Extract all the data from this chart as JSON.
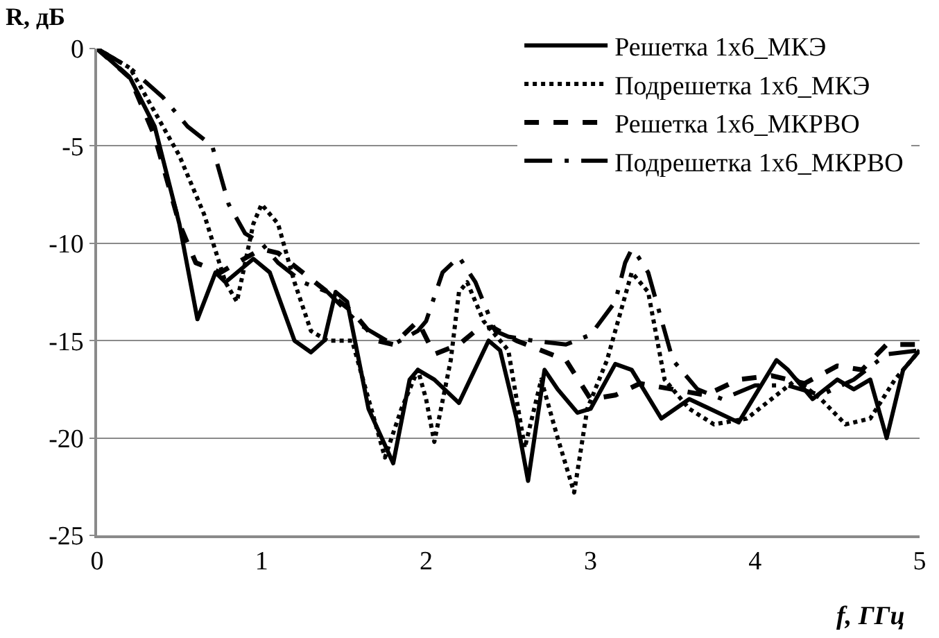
{
  "chart_data": {
    "type": "line",
    "xlabel": "f, ГГц",
    "ylabel": "R, дБ",
    "xlim": [
      0,
      5
    ],
    "xticks": [
      0,
      1,
      2,
      3,
      4,
      5
    ],
    "ylim": [
      -25,
      0
    ],
    "yticks": [
      -25,
      -20,
      -15,
      -10,
      -5,
      0
    ],
    "grid": "y",
    "legend": "top right",
    "marker": "none",
    "series": [
      {
        "name": "Решетка 1x6_МКЭ",
        "color": "#000000",
        "line_style": "solid",
        "x": [
          0,
          0.2,
          0.35,
          0.5,
          0.61,
          0.72,
          0.78,
          0.95,
          1.05,
          1.2,
          1.3,
          1.38,
          1.45,
          1.52,
          1.65,
          1.8,
          1.9,
          1.95,
          2.05,
          2.2,
          2.38,
          2.45,
          2.55,
          2.62,
          2.72,
          2.8,
          2.92,
          3.0,
          3.15,
          3.25,
          3.43,
          3.6,
          3.9,
          4.13,
          4.2,
          4.35,
          4.5,
          4.6,
          4.7,
          4.8,
          4.9,
          5
        ],
        "values": [
          0,
          -1.5,
          -4,
          -9,
          -13.9,
          -11.5,
          -12,
          -10.8,
          -11.5,
          -15,
          -15.6,
          -15,
          -12.5,
          -13,
          -18.5,
          -21.3,
          -17,
          -16.5,
          -17,
          -18.2,
          -15,
          -15.5,
          -19,
          -22.2,
          -16.5,
          -17.5,
          -18.7,
          -18.5,
          -16.2,
          -16.5,
          -19,
          -18,
          -19.2,
          -16,
          -16.5,
          -18,
          -17,
          -17.5,
          -17,
          -20,
          -16.5,
          -15.5
        ]
      },
      {
        "name": "Подрешетка 1x6_МКЭ",
        "color": "#000000",
        "line_style": "dotted",
        "x": [
          0,
          0.2,
          0.3,
          0.5,
          0.65,
          0.78,
          0.85,
          0.95,
          1.0,
          1.1,
          1.2,
          1.3,
          1.4,
          1.55,
          1.65,
          1.75,
          1.85,
          1.95,
          2.0,
          2.05,
          2.15,
          2.2,
          2.25,
          2.35,
          2.5,
          2.6,
          2.7,
          2.8,
          2.9,
          2.98,
          3.1,
          3.25,
          3.35,
          3.45,
          3.6,
          3.75,
          3.95,
          4.1,
          4.25,
          4.4,
          4.55,
          4.7,
          4.85,
          5
        ],
        "values": [
          0,
          -1,
          -2.5,
          -5.5,
          -8.5,
          -12,
          -13,
          -9,
          -8,
          -9,
          -12,
          -14.5,
          -15,
          -15,
          -18,
          -21,
          -18.5,
          -16.5,
          -18,
          -20.2,
          -16,
          -12.5,
          -12,
          -14,
          -15.5,
          -20.5,
          -17,
          -20,
          -22.8,
          -18.5,
          -16,
          -11.5,
          -12.5,
          -17,
          -18.5,
          -19.3,
          -19,
          -18,
          -17,
          -18,
          -19.3,
          -19,
          -17,
          -15.5
        ]
      },
      {
        "name": "Решетка 1x6_МКРВО",
        "color": "#000000",
        "line_style": "dashed",
        "x": [
          0,
          0.2,
          0.35,
          0.5,
          0.6,
          0.75,
          0.85,
          1.0,
          1.1,
          1.25,
          1.4,
          1.55,
          1.7,
          1.8,
          1.95,
          2.05,
          2.2,
          2.3,
          2.4,
          2.55,
          2.7,
          2.85,
          3.0,
          3.15,
          3.3,
          3.5,
          3.7,
          3.9,
          4.1,
          4.3,
          4.5,
          4.65,
          4.8,
          5
        ],
        "values": [
          0,
          -1.5,
          -4.5,
          -9,
          -11,
          -11.5,
          -11,
          -10.3,
          -10.5,
          -11.5,
          -12.5,
          -13.5,
          -15,
          -15.2,
          -14,
          -15.7,
          -15.2,
          -14.5,
          -14.3,
          -15,
          -15.5,
          -16,
          -18,
          -17.8,
          -17.2,
          -17.5,
          -17.8,
          -17,
          -16.8,
          -17.2,
          -16.3,
          -16.5,
          -15.2,
          -15.2
        ]
      },
      {
        "name": "Подрешетка 1x6_МКРВО",
        "color": "#000000",
        "line_style": "dashdot",
        "x": [
          0,
          0.2,
          0.4,
          0.55,
          0.7,
          0.8,
          0.9,
          1.0,
          1.1,
          1.25,
          1.4,
          1.6,
          1.8,
          1.95,
          2.0,
          2.1,
          2.2,
          2.3,
          2.42,
          2.5,
          2.65,
          2.85,
          3.0,
          3.15,
          3.21,
          3.25,
          3.29,
          3.35,
          3.5,
          3.65,
          3.8,
          4.0,
          4.2,
          4.4,
          4.6,
          4.8,
          5
        ],
        "values": [
          0,
          -1,
          -2.5,
          -4,
          -5,
          -8,
          -9.5,
          -10,
          -11,
          -12,
          -12.5,
          -14.2,
          -15.2,
          -14.5,
          -14,
          -11.5,
          -10.7,
          -12,
          -14.5,
          -14.8,
          -15,
          -15.2,
          -14.7,
          -13,
          -11,
          -10.3,
          -10.7,
          -11.5,
          -16,
          -17.5,
          -18,
          -17.3,
          -17.3,
          -17.8,
          -17,
          -15.7,
          -15.5
        ]
      }
    ]
  }
}
